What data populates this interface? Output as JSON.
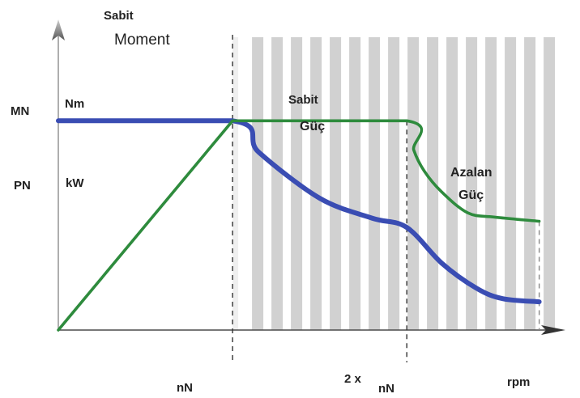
{
  "chart_data": {
    "type": "line",
    "labels": {
      "const_torque_top": "Sabit",
      "const_torque_bottom": "Moment",
      "const_power_top": "Sabit",
      "const_power_bottom": "Güç",
      "decreasing_power_top": "Azalan",
      "decreasing_power_bottom": "Güç",
      "y_tick_torque": "MN",
      "y_tick_power": "PN",
      "unit_torque": "Nm",
      "unit_power": "kW",
      "x_tick_nominal": "nN",
      "x_tick_double_prefix": "2 x",
      "x_tick_double_suffix": "nN",
      "x_axis_unit": "rpm"
    },
    "x_range": [
      0,
      2.85
    ],
    "y_range": [
      0,
      1.43
    ],
    "series": [
      {
        "key": "torque",
        "color": "#3a4db3",
        "points": [
          [
            0,
            1.0
          ],
          [
            1.0,
            1.0
          ],
          [
            1.15,
            0.85
          ],
          [
            1.5,
            0.63
          ],
          [
            1.8,
            0.535
          ],
          [
            2.0,
            0.49
          ],
          [
            2.2,
            0.32
          ],
          [
            2.4,
            0.2
          ],
          [
            2.55,
            0.15
          ],
          [
            2.76,
            0.135
          ]
        ]
      },
      {
        "key": "power",
        "color": "#2e8b3d",
        "points": [
          [
            0,
            0
          ],
          [
            1.0,
            1.0
          ],
          [
            2.0,
            1.0
          ],
          [
            2.04,
            0.86
          ],
          [
            2.1,
            0.76
          ],
          [
            2.2,
            0.66
          ],
          [
            2.35,
            0.56
          ],
          [
            2.5,
            0.54
          ],
          [
            2.76,
            0.52
          ]
        ]
      }
    ],
    "reference_lines": {
      "nominal_speed": 1.0,
      "double_speed": 2.0,
      "power_level": 1.0
    },
    "regions": {
      "shaded_from": 1.0
    },
    "colors": {
      "shade_stripe": "#c9c9c9",
      "axis": "#4a4a4a",
      "guide": "#333333"
    }
  }
}
